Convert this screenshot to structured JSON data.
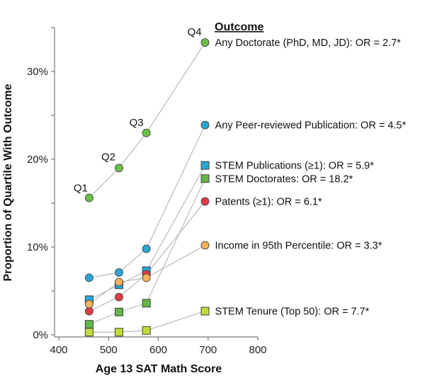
{
  "chart_data": {
    "type": "line",
    "title": "",
    "xlabel": "Age 13 SAT Math Score",
    "ylabel": "Proportion of Quartile With Outcome",
    "xlim": [
      400,
      800
    ],
    "ylim": [
      0,
      35
    ],
    "x_ticks": [
      400,
      500,
      600,
      700,
      800
    ],
    "x_tick_labels": [
      "400",
      "500",
      "600",
      "700",
      "800"
    ],
    "y_ticks": [
      0,
      5,
      10,
      15,
      20,
      25,
      30,
      35
    ],
    "y_tick_labels": [
      "0%",
      "",
      "10%",
      "",
      "20%",
      "",
      "30%",
      ""
    ],
    "grid": false,
    "legend_title": "Outcome",
    "legend_placement": "right",
    "quartile_labels": [
      "Q1",
      "Q2",
      "Q3",
      "Q4"
    ],
    "x": [
      461,
      521,
      576,
      694
    ],
    "series": [
      {
        "name": "Any Doctorate  (PhD, MD, JD): OR = 2.7*",
        "marker": "circle",
        "color": "#6cbf47",
        "values": [
          15.6,
          19.0,
          23.0,
          33.3
        ]
      },
      {
        "name": "Any Peer-reviewed Publication: OR = 4.5*",
        "marker": "circle",
        "color": "#2aa6d6",
        "values": [
          6.5,
          7.1,
          9.8,
          23.9
        ]
      },
      {
        "name": "STEM Publications (≥1): OR = 5.9*",
        "marker": "square",
        "color": "#2aa6d6",
        "values": [
          4.0,
          5.7,
          7.3,
          19.3
        ]
      },
      {
        "name": "STEM Doctorates: OR = 18.2*",
        "marker": "square",
        "color": "#62b646",
        "values": [
          1.2,
          2.6,
          3.6,
          17.8
        ]
      },
      {
        "name": "Patents (≥1): OR = 6.1*",
        "marker": "circle",
        "color": "#e03c45",
        "values": [
          2.7,
          4.3,
          6.9,
          15.2
        ]
      },
      {
        "name": "Income in 95th Percentile: OR = 3.3*",
        "marker": "circle",
        "color": "#f7b25d",
        "values": [
          3.5,
          6.0,
          6.5,
          10.2
        ]
      },
      {
        "name": "STEM Tenure (Top 50): OR = 7.7*",
        "marker": "square",
        "color": "#c2db3b",
        "values": [
          0.3,
          0.3,
          0.5,
          2.7
        ]
      }
    ]
  }
}
